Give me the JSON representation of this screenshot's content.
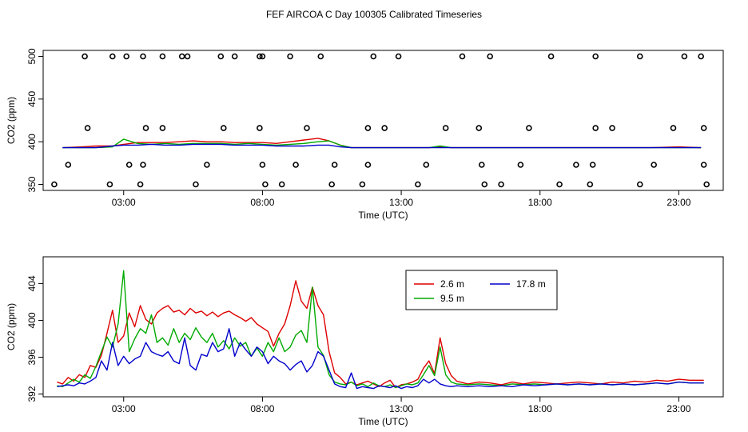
{
  "title": "FEF AIRCOA C  Day 100305  Calibrated Timeseries",
  "chart_data": [
    {
      "type": "line",
      "xlabel": "Time (UTC)",
      "ylabel": "CO2 (ppm)",
      "xlim": [
        0.1,
        24.6
      ],
      "ylim": [
        343,
        507
      ],
      "xticks": [
        3,
        8,
        13,
        18,
        23
      ],
      "xtick_labels": [
        "03:00",
        "08:00",
        "13:00",
        "18:00",
        "23:00"
      ],
      "yticks": [
        350,
        400,
        450,
        500
      ],
      "ytick_labels": [
        "350",
        "400",
        "450",
        "500"
      ],
      "grid": false,
      "legend": "none",
      "series": [
        {
          "color": "#dd0000",
          "x": [
            0.8,
            1.5,
            2.0,
            2.6,
            3.0,
            3.5,
            4.0,
            4.5,
            5.0,
            5.5,
            6.0,
            6.5,
            7.0,
            7.5,
            8.0,
            8.5,
            9.0,
            9.5,
            10.0,
            10.4,
            10.8,
            11.2,
            12.0,
            13.0,
            14.0,
            14.4,
            14.8,
            16.0,
            17.0,
            18.0,
            19.0,
            20.0,
            21.0,
            22.0,
            23.0,
            23.8
          ],
          "y": [
            393,
            394,
            395,
            395,
            397,
            399,
            399,
            399,
            400,
            401,
            400,
            400,
            399,
            399,
            399,
            398,
            400,
            402,
            404,
            401,
            396,
            393,
            393,
            393,
            393,
            394,
            393,
            393,
            393,
            393,
            393,
            393,
            393,
            393,
            394,
            393
          ]
        },
        {
          "color": "#00aa00",
          "x": [
            0.8,
            1.5,
            2.0,
            2.6,
            3.0,
            3.5,
            4.0,
            4.5,
            5.0,
            5.5,
            6.0,
            6.5,
            7.0,
            7.5,
            8.0,
            8.5,
            9.0,
            9.5,
            10.0,
            10.4,
            10.8,
            11.2,
            12.0,
            13.0,
            14.0,
            14.4,
            14.8,
            16.0,
            17.0,
            18.0,
            19.0,
            20.0,
            21.0,
            22.0,
            23.0,
            23.8
          ],
          "y": [
            393,
            393,
            393,
            394,
            403,
            398,
            397,
            398,
            397,
            398,
            398,
            398,
            397,
            398,
            397,
            396,
            397,
            398,
            400,
            401,
            396,
            393,
            393,
            393,
            393,
            395,
            393,
            393,
            393,
            393,
            393,
            393,
            393,
            393,
            393,
            393
          ]
        },
        {
          "color": "#0000cc",
          "x": [
            0.8,
            1.5,
            2.0,
            2.6,
            3.0,
            3.5,
            4.0,
            4.5,
            5.0,
            5.5,
            6.0,
            6.5,
            7.0,
            7.5,
            8.0,
            8.5,
            9.0,
            9.5,
            10.0,
            10.4,
            10.8,
            11.2,
            12.0,
            13.0,
            14.0,
            14.4,
            14.8,
            16.0,
            17.0,
            18.0,
            19.0,
            20.0,
            21.0,
            22.0,
            23.0,
            23.8
          ],
          "y": [
            393,
            393,
            393,
            395,
            396,
            396,
            397,
            396,
            396,
            397,
            397,
            397,
            396,
            396,
            396,
            395,
            395,
            395,
            396,
            396,
            394,
            393,
            393,
            393,
            393,
            393,
            393,
            393,
            393,
            393,
            393,
            393,
            393,
            393,
            393,
            393
          ]
        },
        {
          "color": "#000000",
          "marker": "circle",
          "x": [
            1.6,
            2.6,
            3.1,
            3.7,
            4.4,
            5.1,
            5.3,
            6.5,
            7.0,
            7.9,
            8.0,
            9.0,
            10.1,
            12.0,
            12.9,
            15.2,
            16.2,
            18.4,
            20.0,
            21.6,
            23.2,
            23.8
          ],
          "y": [
            500,
            500,
            500,
            500,
            500,
            500,
            500,
            500,
            500,
            500,
            500,
            500,
            500,
            500,
            500,
            500,
            500,
            500,
            500,
            500,
            500,
            500
          ]
        },
        {
          "color": "#000000",
          "marker": "circle",
          "x": [
            1.7,
            3.8,
            4.4,
            6.6,
            7.9,
            9.6,
            11.8,
            12.4,
            14.6,
            15.8,
            17.6,
            20.0,
            20.6,
            22.8,
            23.9
          ],
          "y": [
            416,
            416,
            416,
            416,
            416,
            416,
            416,
            416,
            416,
            416,
            416,
            416,
            416,
            416,
            416
          ]
        },
        {
          "color": "#000000",
          "marker": "circle",
          "x": [
            1.0,
            3.2,
            3.7,
            6.0,
            8.0,
            9.2,
            10.6,
            11.8,
            13.9,
            15.9,
            17.3,
            19.3,
            19.9,
            22.1,
            23.9
          ],
          "y": [
            373,
            373,
            373,
            373,
            373,
            373,
            373,
            373,
            373,
            373,
            373,
            373,
            373,
            373,
            373
          ]
        },
        {
          "color": "#000000",
          "marker": "circle",
          "x": [
            0.5,
            2.5,
            3.6,
            5.6,
            8.1,
            8.7,
            10.5,
            11.6,
            13.6,
            16.0,
            16.6,
            18.7,
            19.8,
            21.6,
            24.0
          ],
          "y": [
            350,
            350,
            350,
            350,
            350,
            350,
            350,
            350,
            350,
            350,
            350,
            350,
            350,
            350,
            350
          ]
        }
      ]
    },
    {
      "type": "line",
      "xlabel": "Time (UTC)",
      "ylabel": "CO2 (ppm)",
      "xlim": [
        0.1,
        24.6
      ],
      "ylim": [
        391.7,
        406.9
      ],
      "xticks": [
        3,
        8,
        13,
        18,
        23
      ],
      "xtick_labels": [
        "03:00",
        "08:00",
        "13:00",
        "18:00",
        "23:00"
      ],
      "yticks": [
        392,
        396,
        400,
        404
      ],
      "ytick_labels": [
        "392",
        "396",
        "400",
        "404"
      ],
      "grid": false,
      "legend": "top-center",
      "series": [
        {
          "name": "2.6 m",
          "color": "#dd0000",
          "x": [
            0.6,
            0.8,
            1.0,
            1.2,
            1.4,
            1.6,
            1.8,
            2.0,
            2.2,
            2.4,
            2.6,
            2.8,
            3.0,
            3.2,
            3.4,
            3.6,
            3.8,
            4.0,
            4.2,
            4.4,
            4.6,
            4.8,
            5.0,
            5.2,
            5.4,
            5.6,
            5.8,
            6.0,
            6.2,
            6.4,
            6.6,
            6.8,
            7.0,
            7.2,
            7.4,
            7.6,
            7.8,
            8.0,
            8.2,
            8.4,
            8.6,
            8.8,
            9.0,
            9.2,
            9.4,
            9.6,
            9.8,
            10.0,
            10.2,
            10.4,
            10.6,
            10.8,
            11.0,
            11.2,
            11.4,
            11.6,
            11.8,
            12.0,
            12.2,
            12.4,
            12.6,
            12.8,
            13.0,
            13.2,
            13.4,
            13.6,
            13.8,
            14.0,
            14.2,
            14.4,
            14.6,
            14.8,
            15.0,
            15.4,
            15.8,
            16.2,
            16.6,
            17.0,
            17.4,
            17.8,
            18.2,
            18.6,
            19.0,
            19.4,
            19.8,
            20.2,
            20.6,
            21.0,
            21.4,
            21.8,
            22.2,
            22.6,
            23.0,
            23.4,
            23.9
          ],
          "y": [
            393.3,
            393.1,
            393.8,
            393.4,
            394.1,
            393.8,
            395.1,
            394.9,
            396.2,
            398.6,
            401.1,
            397.6,
            398.3,
            400.8,
            399.3,
            401.6,
            400.1,
            399.6,
            400.8,
            401.3,
            401.6,
            400.9,
            401.1,
            400.6,
            401.3,
            400.8,
            401.0,
            400.5,
            400.9,
            400.4,
            400.8,
            401.0,
            400.6,
            400.3,
            399.9,
            400.3,
            399.6,
            399.2,
            398.8,
            397.2,
            398.6,
            399.6,
            401.6,
            404.3,
            402.1,
            401.3,
            403.6,
            401.6,
            400.6,
            396.6,
            394.3,
            393.8,
            393.1,
            393.3,
            393.0,
            393.2,
            393.4,
            393.1,
            392.8,
            393.2,
            393.5,
            392.7,
            393.0,
            393.1,
            393.3,
            393.6,
            394.8,
            395.6,
            394.2,
            398.1,
            395.3,
            394.0,
            393.4,
            393.1,
            393.3,
            393.2,
            393.0,
            393.3,
            393.1,
            393.3,
            393.2,
            393.1,
            393.2,
            393.3,
            393.2,
            393.1,
            393.3,
            393.2,
            393.4,
            393.3,
            393.5,
            393.4,
            393.6,
            393.5,
            393.5
          ]
        },
        {
          "name": "9.5 m",
          "color": "#00aa00",
          "x": [
            0.6,
            0.8,
            1.0,
            1.2,
            1.4,
            1.6,
            1.8,
            2.0,
            2.2,
            2.4,
            2.6,
            2.8,
            3.0,
            3.2,
            3.4,
            3.6,
            3.8,
            4.0,
            4.2,
            4.4,
            4.6,
            4.8,
            5.0,
            5.2,
            5.4,
            5.6,
            5.8,
            6.0,
            6.2,
            6.4,
            6.6,
            6.8,
            7.0,
            7.2,
            7.4,
            7.6,
            7.8,
            8.0,
            8.2,
            8.4,
            8.6,
            8.8,
            9.0,
            9.2,
            9.4,
            9.6,
            9.8,
            10.0,
            10.2,
            10.4,
            10.6,
            10.8,
            11.0,
            11.2,
            11.4,
            11.6,
            11.8,
            12.0,
            12.2,
            12.4,
            12.6,
            12.8,
            13.0,
            13.2,
            13.4,
            13.6,
            13.8,
            14.0,
            14.2,
            14.4,
            14.6,
            14.8,
            15.0,
            15.4,
            15.8,
            16.2,
            16.6,
            17.0,
            17.4,
            17.8,
            18.2,
            18.6,
            19.0,
            19.4,
            19.8,
            20.2,
            20.6,
            21.0,
            21.4,
            21.8,
            22.2,
            22.6,
            23.0,
            23.4,
            23.9
          ],
          "y": [
            392.9,
            392.8,
            393.2,
            393.6,
            393.3,
            394.1,
            393.7,
            395.0,
            396.6,
            398.2,
            397.1,
            399.6,
            405.4,
            396.6,
            398.0,
            399.1,
            398.6,
            400.6,
            397.6,
            398.1,
            397.3,
            399.1,
            397.6,
            398.6,
            397.9,
            399.2,
            398.2,
            397.6,
            398.6,
            397.1,
            397.8,
            396.9,
            398.1,
            397.2,
            397.6,
            396.1,
            397.0,
            396.1,
            397.6,
            396.6,
            398.1,
            396.6,
            397.1,
            398.4,
            398.9,
            397.6,
            403.6,
            397.1,
            396.2,
            394.1,
            393.3,
            393.1,
            393.0,
            393.3,
            392.9,
            393.1,
            392.8,
            393.2,
            392.9,
            392.8,
            393.0,
            392.7,
            392.9,
            393.1,
            393.0,
            393.2,
            394.1,
            395.1,
            394.0,
            397.1,
            394.1,
            393.3,
            393.1,
            393.0,
            393.1,
            393.0,
            392.9,
            393.1,
            393.0,
            393.1,
            393.0,
            393.1,
            393.0,
            393.1,
            393.0,
            393.1,
            393.0,
            393.1,
            393.0,
            393.1,
            393.2,
            393.1,
            393.3,
            393.2,
            393.2
          ]
        },
        {
          "name": "17.8 m",
          "color": "#0000cc",
          "x": [
            0.6,
            0.8,
            1.0,
            1.2,
            1.4,
            1.6,
            1.8,
            2.0,
            2.2,
            2.4,
            2.6,
            2.8,
            3.0,
            3.2,
            3.4,
            3.6,
            3.8,
            4.0,
            4.2,
            4.4,
            4.6,
            4.8,
            5.0,
            5.2,
            5.4,
            5.6,
            5.8,
            6.0,
            6.2,
            6.4,
            6.6,
            6.8,
            7.0,
            7.2,
            7.4,
            7.6,
            7.8,
            8.0,
            8.2,
            8.4,
            8.6,
            8.8,
            9.0,
            9.2,
            9.4,
            9.6,
            9.8,
            10.0,
            10.2,
            10.4,
            10.6,
            10.8,
            11.0,
            11.2,
            11.4,
            11.6,
            11.8,
            12.0,
            12.2,
            12.4,
            12.6,
            12.8,
            13.0,
            13.2,
            13.4,
            13.6,
            13.8,
            14.0,
            14.2,
            14.4,
            14.6,
            14.8,
            15.0,
            15.4,
            15.8,
            16.2,
            16.6,
            17.0,
            17.4,
            17.8,
            18.2,
            18.6,
            19.0,
            19.4,
            19.8,
            20.2,
            20.6,
            21.0,
            21.4,
            21.8,
            22.2,
            22.6,
            23.0,
            23.4,
            23.9
          ],
          "y": [
            392.8,
            392.9,
            393.0,
            392.9,
            393.2,
            393.1,
            393.4,
            393.8,
            395.6,
            394.6,
            397.6,
            395.1,
            396.1,
            395.3,
            395.8,
            396.1,
            397.6,
            396.6,
            396.3,
            396.1,
            396.6,
            395.6,
            395.3,
            398.1,
            395.1,
            394.6,
            396.3,
            396.1,
            397.6,
            396.6,
            396.9,
            399.1,
            396.1,
            397.6,
            396.8,
            396.1,
            397.1,
            396.6,
            395.3,
            396.1,
            395.6,
            395.3,
            394.6,
            395.2,
            395.6,
            394.4,
            395.1,
            396.6,
            396.1,
            394.6,
            393.1,
            392.8,
            392.7,
            394.3,
            392.6,
            392.8,
            392.7,
            392.6,
            392.9,
            392.8,
            392.7,
            392.9,
            392.6,
            392.8,
            392.7,
            392.9,
            393.6,
            393.2,
            393.6,
            393.1,
            392.9,
            392.8,
            392.9,
            392.8,
            392.9,
            392.8,
            392.9,
            392.8,
            393.0,
            392.9,
            393.0,
            393.1,
            393.0,
            393.1,
            393.0,
            393.1,
            393.0,
            393.1,
            393.0,
            393.1,
            393.2,
            393.1,
            393.3,
            393.2,
            393.2
          ]
        }
      ]
    }
  ]
}
